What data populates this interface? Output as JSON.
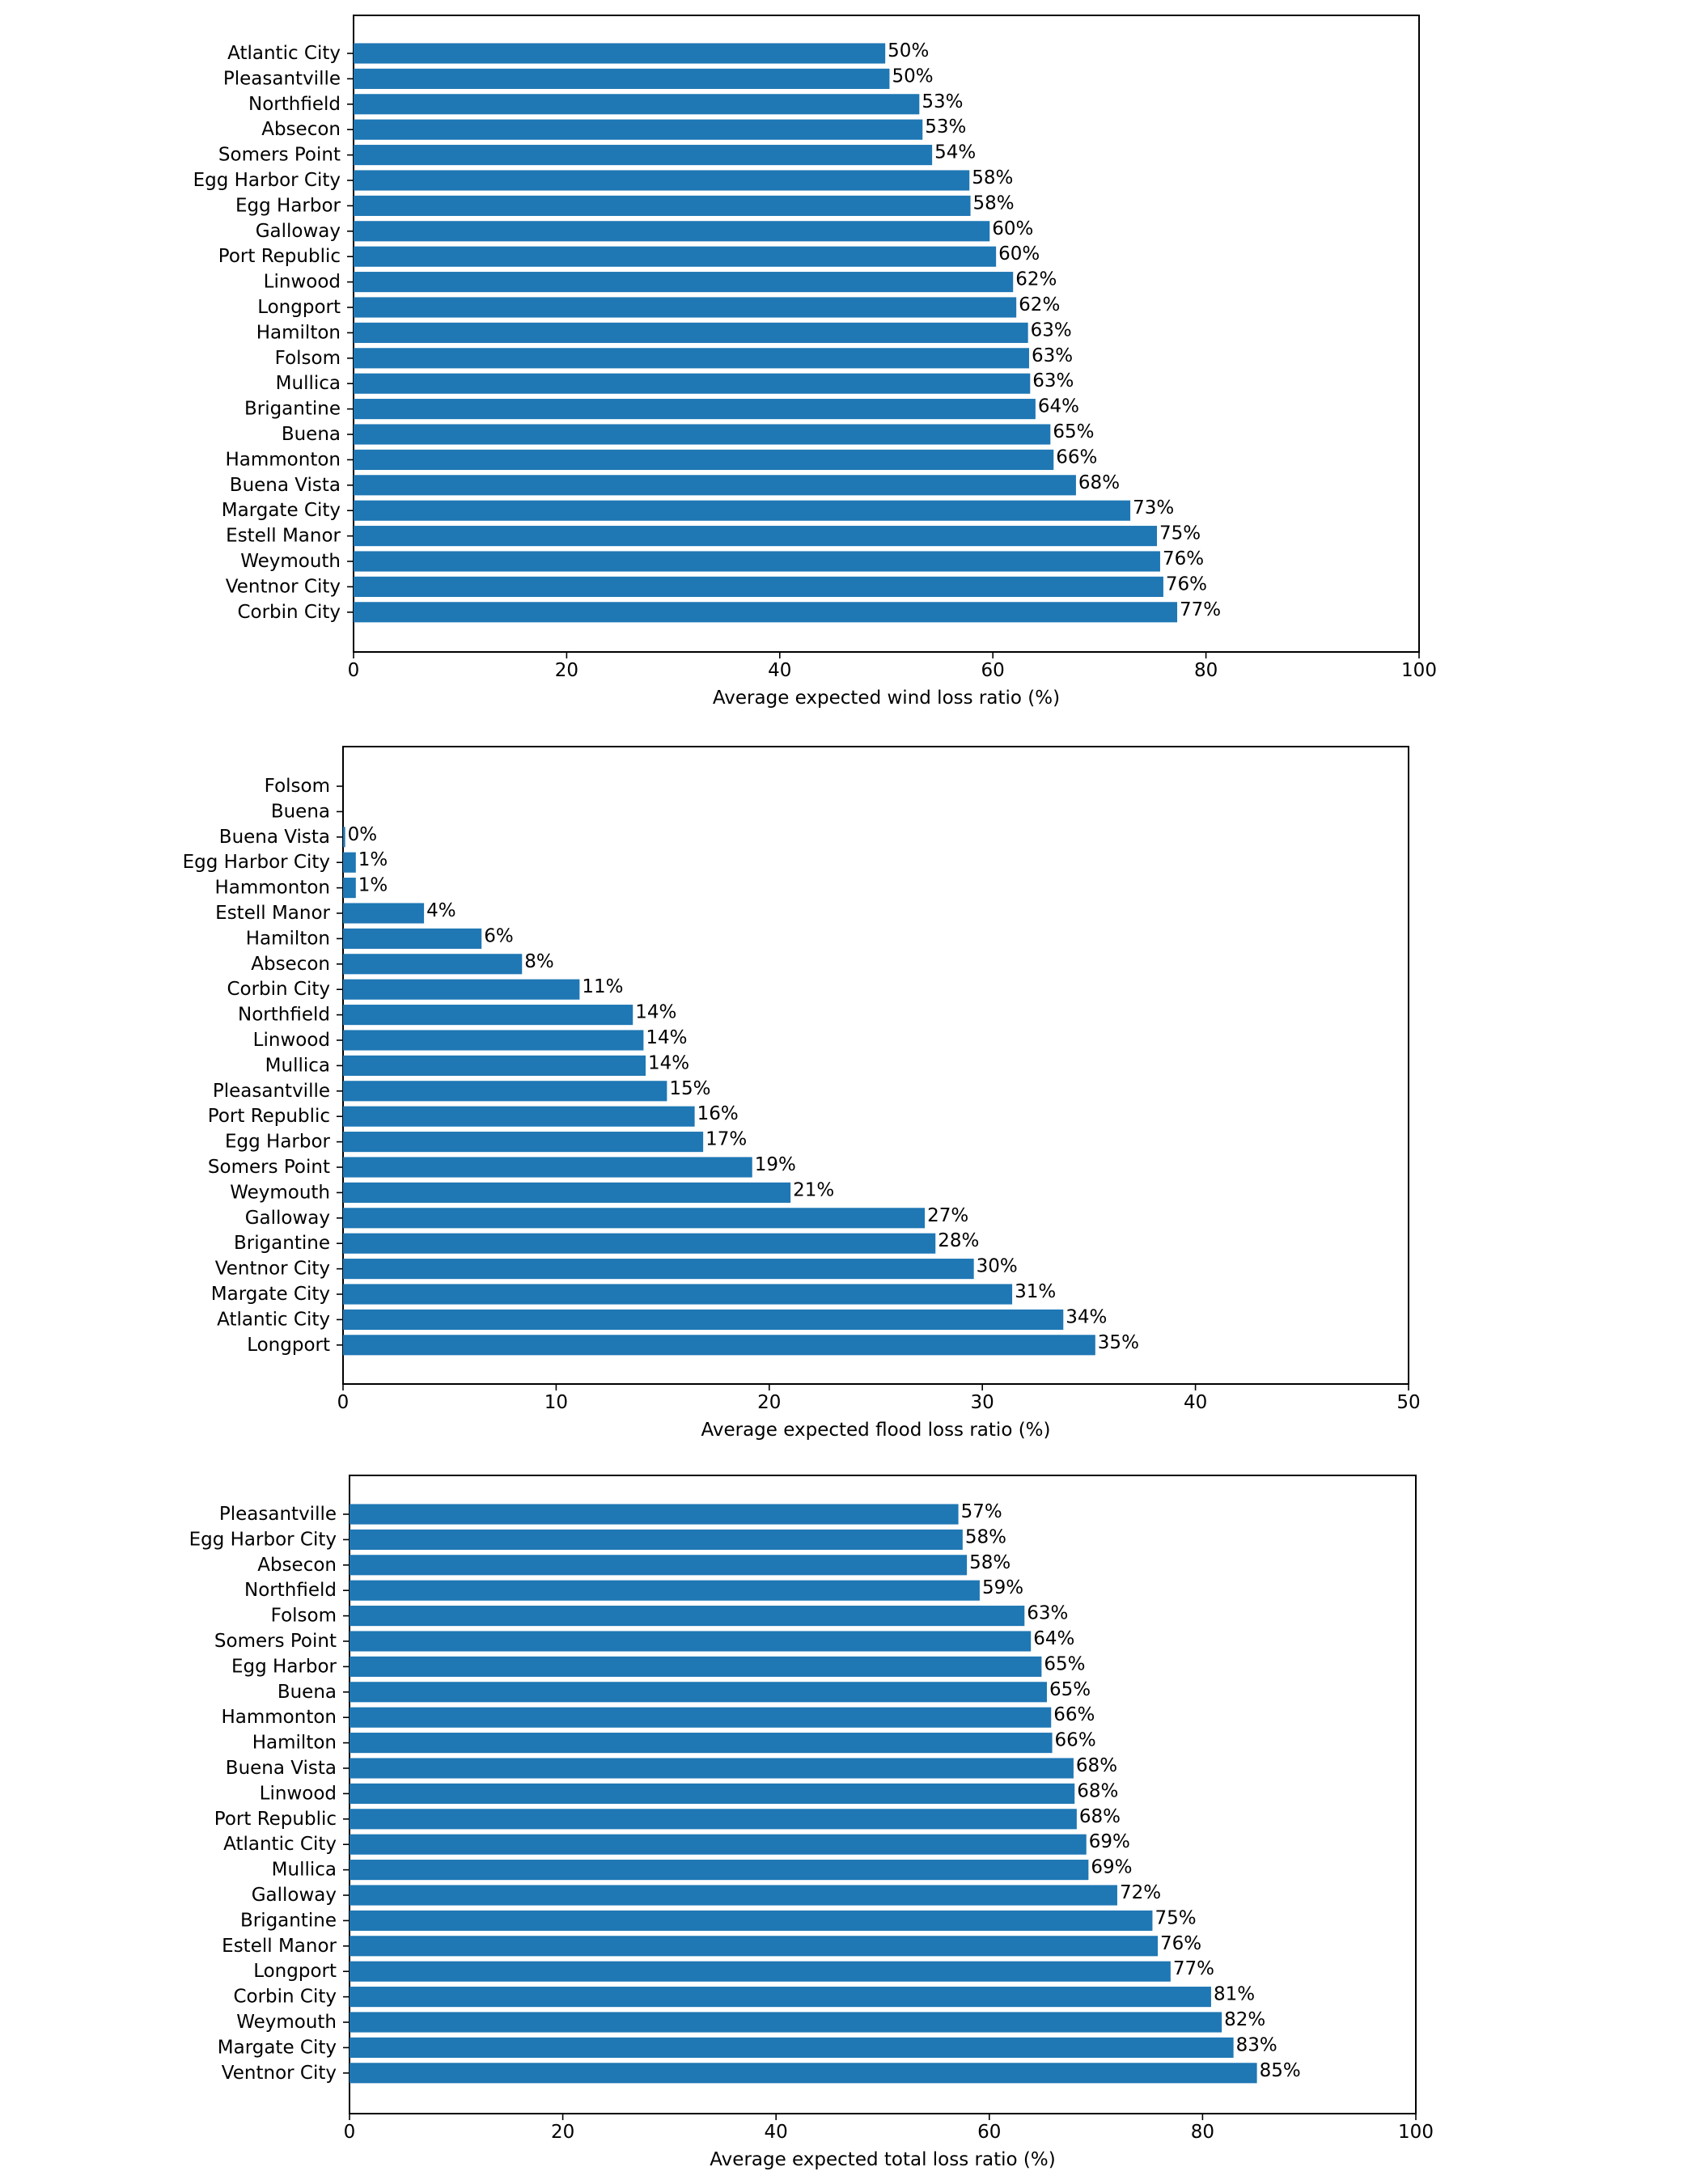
{
  "colors": {
    "bar": "#1f77b4",
    "frame": "#000000",
    "background": "#ffffff"
  },
  "chart_data": [
    {
      "type": "bar",
      "orientation": "horizontal",
      "title": "",
      "xlabel": "Average expected wind loss ratio (%)",
      "ylabel": "",
      "xlim": [
        0,
        100
      ],
      "xticks": [
        0,
        20,
        40,
        60,
        80,
        100
      ],
      "grid": false,
      "label_suffix": "%",
      "categories": [
        "Atlantic City",
        "Pleasantville",
        "Northfield",
        "Absecon",
        "Somers Point",
        "Egg Harbor City",
        "Egg Harbor",
        "Galloway",
        "Port Republic",
        "Linwood",
        "Longport",
        "Hamilton",
        "Folsom",
        "Mullica",
        "Brigantine",
        "Buena",
        "Hammonton",
        "Buena Vista",
        "Margate City",
        "Estell Manor",
        "Weymouth",
        "Ventnor City",
        "Corbin City"
      ],
      "values": [
        49.9,
        50.3,
        53.1,
        53.4,
        54.3,
        57.8,
        57.9,
        59.7,
        60.3,
        61.9,
        62.2,
        63.3,
        63.4,
        63.5,
        64.0,
        65.4,
        65.7,
        67.8,
        72.9,
        75.4,
        75.7,
        76.0,
        77.3
      ],
      "data_labels": [
        "50%",
        "50%",
        "53%",
        "53%",
        "54%",
        "58%",
        "58%",
        "60%",
        "60%",
        "62%",
        "62%",
        "63%",
        "63%",
        "63%",
        "64%",
        "65%",
        "66%",
        "68%",
        "73%",
        "75%",
        "76%",
        "76%",
        "77%"
      ]
    },
    {
      "type": "bar",
      "orientation": "horizontal",
      "title": "",
      "xlabel": "Average expected flood loss ratio (%)",
      "ylabel": "",
      "xlim": [
        0,
        50
      ],
      "xticks": [
        0,
        10,
        20,
        30,
        40,
        50
      ],
      "grid": false,
      "label_suffix": "%",
      "categories": [
        "Folsom",
        "Buena",
        "Buena Vista",
        "Egg Harbor City",
        "Hammonton",
        "Estell Manor",
        "Hamilton",
        "Absecon",
        "Corbin City",
        "Northfield",
        "Linwood",
        "Mullica",
        "Pleasantville",
        "Port Republic",
        "Egg Harbor",
        "Somers Point",
        "Weymouth",
        "Galloway",
        "Brigantine",
        "Ventnor City",
        "Margate City",
        "Atlantic City",
        "Longport"
      ],
      "values": [
        0,
        0,
        0.1,
        0.6,
        0.6,
        3.8,
        6.5,
        8.4,
        11.1,
        13.6,
        14.1,
        14.2,
        15.2,
        16.5,
        16.9,
        19.2,
        21.0,
        27.3,
        27.8,
        29.6,
        31.4,
        33.8,
        35.3
      ],
      "data_labels": [
        "",
        "",
        "0%",
        "1%",
        "1%",
        "4%",
        "6%",
        "8%",
        "11%",
        "14%",
        "14%",
        "14%",
        "15%",
        "16%",
        "17%",
        "19%",
        "21%",
        "27%",
        "28%",
        "30%",
        "31%",
        "34%",
        "35%"
      ]
    },
    {
      "type": "bar",
      "orientation": "horizontal",
      "title": "",
      "xlabel": "Average expected total loss ratio (%)",
      "ylabel": "",
      "xlim": [
        0,
        100
      ],
      "xticks": [
        0,
        20,
        40,
        60,
        80,
        100
      ],
      "grid": false,
      "label_suffix": "%",
      "categories": [
        "Pleasantville",
        "Egg Harbor City",
        "Absecon",
        "Northfield",
        "Folsom",
        "Somers Point",
        "Egg Harbor",
        "Buena",
        "Hammonton",
        "Hamilton",
        "Buena Vista",
        "Linwood",
        "Port Republic",
        "Atlantic City",
        "Mullica",
        "Galloway",
        "Brigantine",
        "Estell Manor",
        "Longport",
        "Corbin City",
        "Weymouth",
        "Margate City",
        "Ventnor City"
      ],
      "values": [
        57.1,
        57.5,
        57.9,
        59.1,
        63.3,
        63.9,
        64.9,
        65.4,
        65.8,
        65.9,
        67.9,
        68.0,
        68.2,
        69.1,
        69.3,
        72.0,
        75.3,
        75.8,
        77.0,
        80.8,
        81.8,
        82.9,
        85.1
      ],
      "data_labels": [
        "57%",
        "58%",
        "58%",
        "59%",
        "63%",
        "64%",
        "65%",
        "65%",
        "66%",
        "66%",
        "68%",
        "68%",
        "68%",
        "69%",
        "69%",
        "72%",
        "75%",
        "76%",
        "77%",
        "81%",
        "82%",
        "83%",
        "85%"
      ]
    }
  ]
}
